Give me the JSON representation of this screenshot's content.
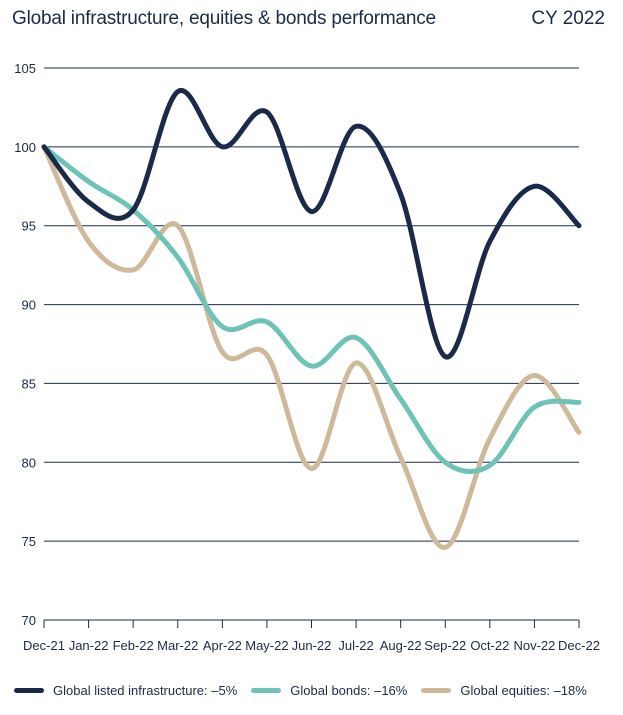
{
  "header": {
    "title": "Global infrastructure, equities & bonds performance",
    "badge": "CY 2022"
  },
  "chart_data": {
    "type": "line",
    "title": "Global infrastructure, equities & bonds performance",
    "subtitle": "CY 2022",
    "xlabel": "",
    "ylabel": "",
    "categories": [
      "Dec-21",
      "Jan-22",
      "Feb-22",
      "Mar-22",
      "Apr-22",
      "May-22",
      "Jun-22",
      "Jul-22",
      "Aug-22",
      "Sep-22",
      "Oct-22",
      "Nov-22",
      "Dec-22"
    ],
    "ylim": [
      70,
      105
    ],
    "yticks": [
      70,
      75,
      80,
      85,
      90,
      95,
      100,
      105
    ],
    "grid": true,
    "legend_position": "bottom",
    "series": [
      {
        "name": "Global listed infrastructure: –5%",
        "color": "#1b2a4a",
        "values": [
          100,
          96.5,
          96.0,
          103.5,
          100.0,
          102.2,
          95.9,
          101.3,
          97.0,
          86.7,
          94.0,
          97.5,
          95.0
        ]
      },
      {
        "name": "Global bonds: –16%",
        "color": "#6cc3b6",
        "values": [
          100,
          97.8,
          96.0,
          93.0,
          88.6,
          88.9,
          86.1,
          87.9,
          84.0,
          80.0,
          79.8,
          83.5,
          83.8
        ]
      },
      {
        "name": "Global equities: –18%",
        "color": "#cfb99b",
        "values": [
          100,
          94.0,
          92.2,
          95.0,
          87.0,
          86.8,
          79.6,
          86.3,
          80.3,
          74.6,
          81.5,
          85.5,
          81.9
        ]
      }
    ]
  }
}
